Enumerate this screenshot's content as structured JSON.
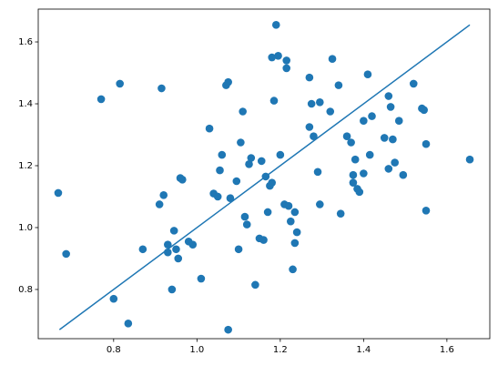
{
  "chart_data": {
    "type": "scatter",
    "xlim": [
      0.619,
      1.703
    ],
    "ylim": [
      0.641,
      1.706
    ],
    "xticks": [
      0.8,
      {
        "value": 1,
        "label": "1.0"
      },
      1.2,
      1.4,
      1.6
    ],
    "yticks": [
      0.8,
      {
        "value": 1,
        "label": "1.0"
      },
      1.2,
      1.4,
      1.6
    ],
    "series": [
      {
        "type": "scatter",
        "color": "#1f77b4",
        "x": [
          0.667,
          0.686,
          0.77,
          0.8,
          0.815,
          0.835,
          0.87,
          0.91,
          0.915,
          0.92,
          0.93,
          0.93,
          0.94,
          0.945,
          0.95,
          0.955,
          0.96,
          0.965,
          0.98,
          0.99,
          1.01,
          1.03,
          1.04,
          1.05,
          1.055,
          1.06,
          1.07,
          1.075,
          1.075,
          1.08,
          1.095,
          1.1,
          1.105,
          1.11,
          1.115,
          1.12,
          1.125,
          1.13,
          1.14,
          1.15,
          1.155,
          1.16,
          1.165,
          1.17,
          1.175,
          1.18,
          1.18,
          1.185,
          1.19,
          1.195,
          1.2,
          1.21,
          1.215,
          1.215,
          1.22,
          1.225,
          1.23,
          1.235,
          1.235,
          1.24,
          1.27,
          1.27,
          1.275,
          1.28,
          1.29,
          1.295,
          1.295,
          1.32,
          1.325,
          1.34,
          1.345,
          1.36,
          1.37,
          1.375,
          1.375,
          1.38,
          1.385,
          1.39,
          1.4,
          1.4,
          1.41,
          1.415,
          1.42,
          1.45,
          1.46,
          1.46,
          1.465,
          1.47,
          1.475,
          1.485,
          1.495,
          1.52,
          1.54,
          1.545,
          1.55,
          1.55,
          1.655
        ],
        "values": [
          1.112,
          0.915,
          1.415,
          0.77,
          1.465,
          0.69,
          0.93,
          1.075,
          1.45,
          1.105,
          0.92,
          0.945,
          0.8,
          0.99,
          0.93,
          0.9,
          1.16,
          1.155,
          0.955,
          0.945,
          0.835,
          1.32,
          1.11,
          1.1,
          1.185,
          1.235,
          1.46,
          1.47,
          0.67,
          1.095,
          1.15,
          0.93,
          1.275,
          1.375,
          1.035,
          1.01,
          1.205,
          1.225,
          0.815,
          0.965,
          1.215,
          0.96,
          1.165,
          1.05,
          1.135,
          1.145,
          1.55,
          1.41,
          1.655,
          1.555,
          1.235,
          1.075,
          1.54,
          1.515,
          1.07,
          1.02,
          0.865,
          1.05,
          0.95,
          0.985,
          1.325,
          1.485,
          1.4,
          1.295,
          1.18,
          1.075,
          1.405,
          1.375,
          1.545,
          1.46,
          1.045,
          1.295,
          1.275,
          1.17,
          1.145,
          1.22,
          1.125,
          1.115,
          1.345,
          1.175,
          1.495,
          1.235,
          1.36,
          1.29,
          1.425,
          1.19,
          1.39,
          1.285,
          1.21,
          1.345,
          1.17,
          1.465,
          1.385,
          1.38,
          1.27,
          1.055,
          1.22
        ]
      },
      {
        "type": "line",
        "color": "#1f77b4",
        "x": [
          0.67,
          1.655
        ],
        "values": [
          0.67,
          1.655
        ]
      }
    ]
  }
}
